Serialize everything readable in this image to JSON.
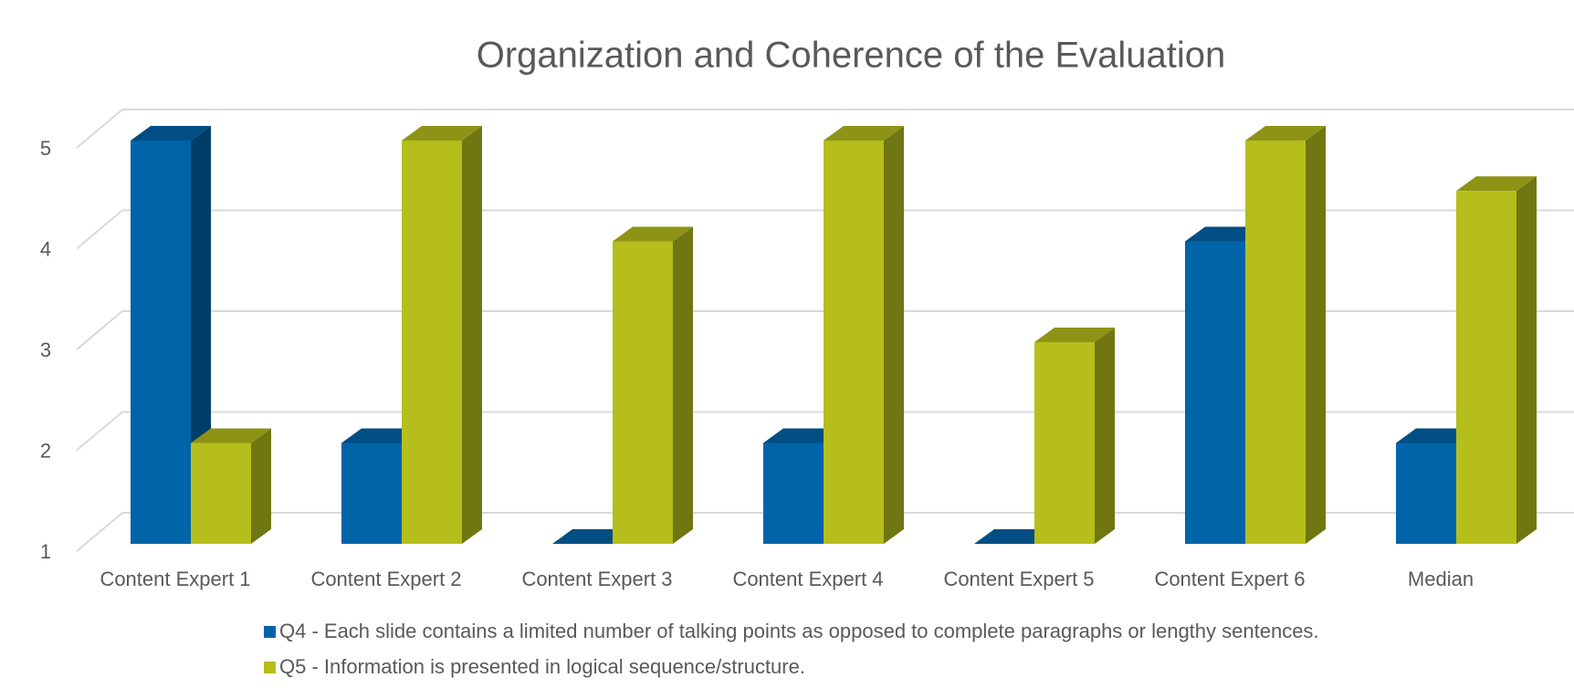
{
  "chart_data": {
    "type": "bar3d",
    "title": "Organization and Coherence of the Evaluation",
    "categories": [
      "Content Expert 1",
      "Content Expert 2",
      "Content Expert 3",
      "Content Expert 4",
      "Content Expert 5",
      "Content Expert 6",
      "Median"
    ],
    "series": [
      {
        "name": "Q4 - Each slide contains a limited number of talking points as opposed to complete paragraphs or lengthy sentences.",
        "color": "#0064a8",
        "values": [
          5,
          2,
          1,
          2,
          1,
          4,
          2
        ]
      },
      {
        "name": "Q5 - Information is presented in logical sequence/structure.",
        "color": "#b5be1b",
        "values": [
          2,
          5,
          4,
          5,
          3,
          5,
          4.5
        ]
      }
    ],
    "ylim": [
      1,
      5
    ],
    "yticks": [
      1,
      2,
      3,
      4,
      5
    ],
    "grid": true
  }
}
